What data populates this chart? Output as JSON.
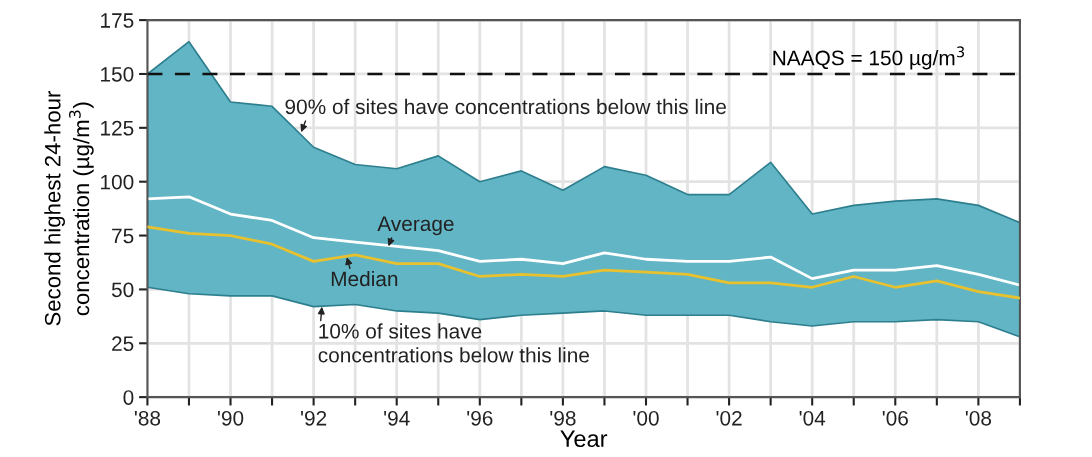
{
  "chart_data": {
    "type": "line",
    "xlabel": "Year",
    "ylabel": "Second highest 24-hour\nconcentration (µg/m$^{3}$)",
    "x": [
      1988,
      1989,
      1990,
      1991,
      1992,
      1993,
      1994,
      1995,
      1996,
      1997,
      1998,
      1999,
      2000,
      2001,
      2002,
      2003,
      2004,
      2005,
      2006,
      2007,
      2008,
      2009
    ],
    "series": [
      {
        "color": "#ffffff",
        "values": [
          92,
          93,
          85,
          82,
          74,
          72,
          70,
          68,
          63,
          64,
          62,
          67,
          64,
          63,
          63,
          65,
          55,
          59,
          59,
          61,
          57,
          52
        ]
      },
      {
        "color": "#e8c12f",
        "values": [
          79,
          76,
          75,
          71,
          63,
          66,
          62,
          62,
          56,
          57,
          56,
          59,
          58,
          57,
          53,
          53,
          51,
          56,
          51,
          54,
          49,
          46
        ],
        "lower": [
          51,
          48,
          47,
          47,
          42,
          43,
          40,
          39,
          36,
          38,
          39,
          40,
          38,
          38,
          38,
          35,
          33,
          35,
          35,
          36,
          35,
          28
        ],
        "upper": [
          150,
          165,
          137,
          135,
          116,
          108,
          106,
          112,
          100,
          105,
          96,
          107,
          103,
          94,
          94,
          109,
          85,
          89,
          91,
          92,
          89,
          81
        ]
      }
    ],
    "xlim": [
      1988,
      2009
    ],
    "ylim": [
      0,
      175
    ],
    "xticks": [
      {
        "value": 1988,
        "label": "'88"
      },
      {
        "value": 1989,
        "label": null
      },
      {
        "value": 1990,
        "label": "'90"
      },
      {
        "value": 1991,
        "label": null
      },
      {
        "value": 1992,
        "label": "'92"
      },
      {
        "value": 1993,
        "label": null
      },
      {
        "value": 1994,
        "label": "'94"
      },
      {
        "value": 1995,
        "label": null
      },
      {
        "value": 1996,
        "label": "'96"
      },
      {
        "value": 1997,
        "label": null
      },
      {
        "value": 1998,
        "label": "'98"
      },
      {
        "value": 1999,
        "label": null
      },
      {
        "value": 2000,
        "label": "'00"
      },
      {
        "value": 2001,
        "label": null
      },
      {
        "value": 2002,
        "label": "'02"
      },
      {
        "value": 2003,
        "label": null
      },
      {
        "value": 2004,
        "label": "'04"
      },
      {
        "value": 2005,
        "label": null
      },
      {
        "value": 2006,
        "label": "'06"
      },
      {
        "value": 2007,
        "label": null
      },
      {
        "value": 2008,
        "label": "'08"
      },
      {
        "value": 2009,
        "label": null
      }
    ],
    "yticks": [
      0,
      25,
      50,
      75,
      100,
      125,
      150,
      175
    ],
    "ref_lines": [
      {
        "axis": "y",
        "value": 150,
        "label": "NAAQS = 150 µg/m$^{3}$",
        "color": "#111111",
        "line_style": "dashed"
      }
    ],
    "annotations": [
      {
        "text": "90% of sites have concentrations below this line",
        "x": 1991.7,
        "y": 123
      },
      {
        "text": "Average",
        "x": 1993.8,
        "y": 70
      },
      {
        "text": "Median",
        "x": 1992.8,
        "y": 65
      },
      {
        "text": "10% of sites have\nconcentrations below this line",
        "x": 1992.2,
        "y": 42
      }
    ],
    "grid": true
  }
}
